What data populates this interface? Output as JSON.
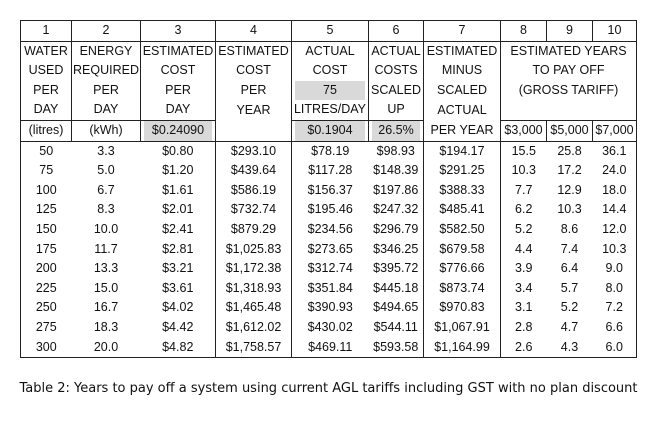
{
  "table": {
    "column_numbers": [
      "1",
      "2",
      "3",
      "4",
      "5",
      "6",
      "7",
      "8",
      "9",
      "10"
    ],
    "headers": {
      "col1": [
        "WATER",
        "USED",
        "PER",
        "DAY"
      ],
      "col2": [
        "ENERGY",
        "REQUIRED",
        "PER",
        "DAY"
      ],
      "col3": [
        "ESTIMATED",
        "COST",
        "PER",
        "DAY"
      ],
      "col4": [
        "ESTIMATED",
        "COST",
        "PER",
        "YEAR"
      ],
      "col5": [
        "ACTUAL",
        "COST",
        "75",
        "LITRES/DAY"
      ],
      "col6": [
        "ACTUAL",
        "COSTS",
        "SCALED",
        "UP"
      ],
      "col7": [
        "ESTIMATED",
        "MINUS",
        "SCALED",
        "ACTUAL",
        "PER YEAR"
      ],
      "col8_10": [
        "ESTIMATED YEARS",
        "TO PAY OFF",
        "(GROSS TARIFF)"
      ]
    },
    "units": {
      "col1": "(litres)",
      "col2": "(kWh)",
      "col3": "$0.24090",
      "col5": "$0.1904",
      "col6": "26.5%",
      "col8": "$3,000",
      "col9": "$5,000",
      "col10": "$7,000"
    },
    "rows": [
      [
        "50",
        "3.3",
        "$0.80",
        "$293.10",
        "$78.19",
        "$98.93",
        "$194.17",
        "15.5",
        "25.8",
        "36.1"
      ],
      [
        "75",
        "5.0",
        "$1.20",
        "$439.64",
        "$117.28",
        "$148.39",
        "$291.25",
        "10.3",
        "17.2",
        "24.0"
      ],
      [
        "100",
        "6.7",
        "$1.61",
        "$586.19",
        "$156.37",
        "$197.86",
        "$388.33",
        "7.7",
        "12.9",
        "18.0"
      ],
      [
        "125",
        "8.3",
        "$2.01",
        "$732.74",
        "$195.46",
        "$247.32",
        "$485.41",
        "6.2",
        "10.3",
        "14.4"
      ],
      [
        "150",
        "10.0",
        "$2.41",
        "$879.29",
        "$234.56",
        "$296.79",
        "$582.50",
        "5.2",
        "8.6",
        "12.0"
      ],
      [
        "175",
        "11.7",
        "$2.81",
        "$1,025.83",
        "$273.65",
        "$346.25",
        "$679.58",
        "4.4",
        "7.4",
        "10.3"
      ],
      [
        "200",
        "13.3",
        "$3.21",
        "$1,172.38",
        "$312.74",
        "$395.72",
        "$776.66",
        "3.9",
        "6.4",
        "9.0"
      ],
      [
        "225",
        "15.0",
        "$3.61",
        "$1,318.93",
        "$351.84",
        "$445.18",
        "$873.74",
        "3.4",
        "5.7",
        "8.0"
      ],
      [
        "250",
        "16.7",
        "$4.02",
        "$1,465.48",
        "$390.93",
        "$494.65",
        "$970.83",
        "3.1",
        "5.2",
        "7.2"
      ],
      [
        "275",
        "18.3",
        "$4.42",
        "$1,612.02",
        "$430.02",
        "$544.11",
        "$1,067.91",
        "2.8",
        "4.7",
        "6.6"
      ],
      [
        "300",
        "20.0",
        "$4.82",
        "$1,758.57",
        "$469.11",
        "$593.58",
        "$1,164.99",
        "2.6",
        "4.3",
        "6.0"
      ]
    ]
  },
  "caption": "Table 2: Years to pay off a system using current AGL tariffs including GST with no plan discount"
}
